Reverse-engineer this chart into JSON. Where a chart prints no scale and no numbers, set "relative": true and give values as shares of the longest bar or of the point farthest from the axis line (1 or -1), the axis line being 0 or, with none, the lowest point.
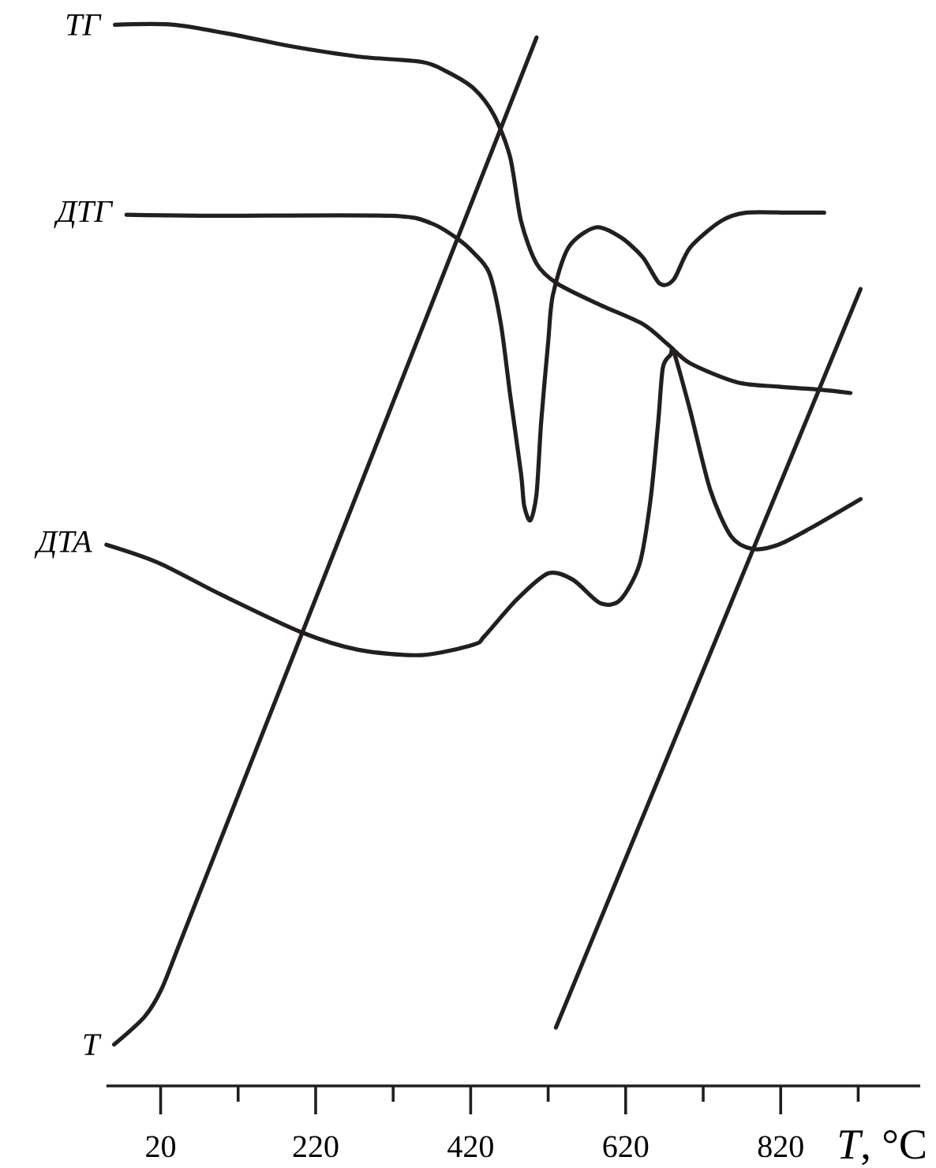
{
  "chart_data": {
    "type": "line",
    "relative": true,
    "xlabel": "*T*, °C",
    "xlim": [
      -50,
      1000
    ],
    "xticks": [
      20,
      {
        "value": 120,
        "label": null
      },
      220,
      {
        "value": 320,
        "label": null
      },
      420,
      {
        "value": 520,
        "label": null
      },
      620,
      {
        "value": 720,
        "label": null
      },
      820,
      {
        "value": 920,
        "label": null
      }
    ],
    "marker": "none",
    "line_style": "solid",
    "series": [
      {
        "name": "ТГ",
        "color": "#231f20",
        "x": [
          -39,
          37,
          119,
          186,
          275,
          357,
          389,
          424,
          450,
          471,
          485,
          505,
          532,
          587,
          642,
          674,
          703,
          764,
          817,
          872,
          910
        ],
        "values": [
          1.0,
          1.0,
          0.99,
          0.98,
          0.97,
          0.965,
          0.956,
          0.94,
          0.915,
          0.875,
          0.815,
          0.775,
          0.756,
          0.736,
          0.718,
          0.699,
          0.681,
          0.663,
          0.659,
          0.656,
          0.653
        ]
      },
      {
        "name": "ДТГ",
        "color": "#231f20",
        "x": [
          -24,
          84,
          316,
          369,
          404,
          424,
          444,
          459,
          471,
          485,
          489,
          497,
          505,
          511,
          520,
          526,
          546,
          581,
          613,
          642,
          664,
          682,
          703,
          743,
          776,
          831,
          876
        ],
        "values": [
          0.821,
          0.82,
          0.82,
          0.813,
          0.798,
          0.785,
          0.766,
          0.718,
          0.651,
          0.577,
          0.547,
          0.533,
          0.558,
          0.626,
          0.701,
          0.745,
          0.79,
          0.809,
          0.8,
          0.781,
          0.756,
          0.76,
          0.79,
          0.815,
          0.823,
          0.823,
          0.823
        ]
      },
      {
        "name": "ДТА",
        "color": "#231f20",
        "x": [
          -50,
          17,
          98,
          200,
          275,
          357,
          424,
          438,
          479,
          520,
          552,
          587,
          613,
          638,
          652,
          662,
          668,
          678,
          682,
          703,
          729,
          756,
          784,
          817,
          857,
          923
        ],
        "values": [
          0.51,
          0.493,
          0.463,
          0.428,
          0.411,
          0.406,
          0.416,
          0.424,
          0.458,
          0.483,
          0.477,
          0.455,
          0.458,
          0.492,
          0.552,
          0.626,
          0.677,
          0.689,
          0.692,
          0.637,
          0.562,
          0.518,
          0.506,
          0.51,
          0.525,
          0.553
        ]
      },
      {
        "name": "T",
        "color": "#231f20",
        "x": [
          -40,
          -1,
          21,
          45,
          106,
          275,
          505,
          518,
          530,
          923
        ],
        "values": [
          0.039,
          0.065,
          0.091,
          0.135,
          0.248,
          0.561,
          0.988,
          null,
          0.055,
          0.751
        ]
      }
    ]
  }
}
